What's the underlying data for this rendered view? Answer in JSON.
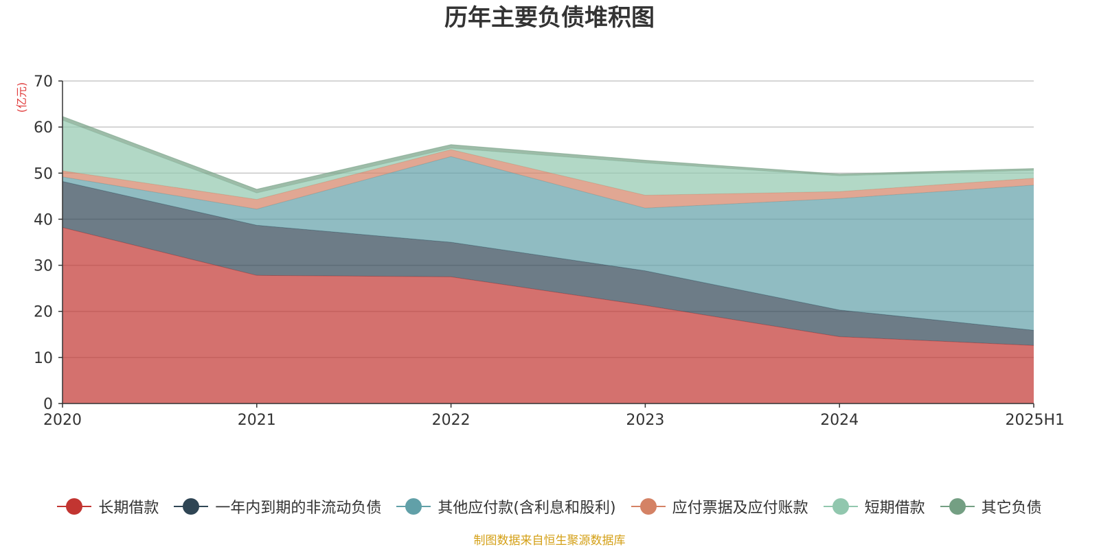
{
  "title": "历年主要负债堆积图",
  "footer": "制图数据来自恒生聚源数据库",
  "chart_data": {
    "type": "area",
    "stacked": true,
    "title": "历年主要负债堆积图",
    "ylabel": "(亿元)",
    "xlabel": "",
    "categories": [
      "2020",
      "2021",
      "2022",
      "2023",
      "2024",
      "2025H1"
    ],
    "ylim": [
      0,
      70
    ],
    "yticks": [
      0,
      10,
      20,
      30,
      40,
      50,
      60,
      70
    ],
    "grid": true,
    "legend_position": "bottom",
    "series": [
      {
        "name": "长期借款",
        "color": "#c23531",
        "values": [
          38.2,
          27.8,
          27.5,
          21.3,
          14.5,
          12.6
        ]
      },
      {
        "name": "一年内到期的非流动负债",
        "color": "#2f4554",
        "values": [
          10.0,
          10.9,
          7.5,
          7.5,
          5.8,
          3.3
        ]
      },
      {
        "name": "其他应付款(含利息和股利)",
        "color": "#61a0a8",
        "values": [
          1.0,
          3.5,
          18.6,
          13.6,
          24.2,
          31.5
        ]
      },
      {
        "name": "应付票据及应付账款",
        "color": "#d48265",
        "values": [
          1.3,
          2.1,
          1.5,
          2.8,
          1.5,
          1.5
        ]
      },
      {
        "name": "短期借款",
        "color": "#91c7ae",
        "values": [
          11.0,
          1.4,
          0.3,
          7.0,
          3.4,
          1.7
        ]
      },
      {
        "name": "其它负债",
        "color": "#749f83",
        "values": [
          0.8,
          0.8,
          0.8,
          0.6,
          0.4,
          0.4
        ]
      }
    ]
  }
}
